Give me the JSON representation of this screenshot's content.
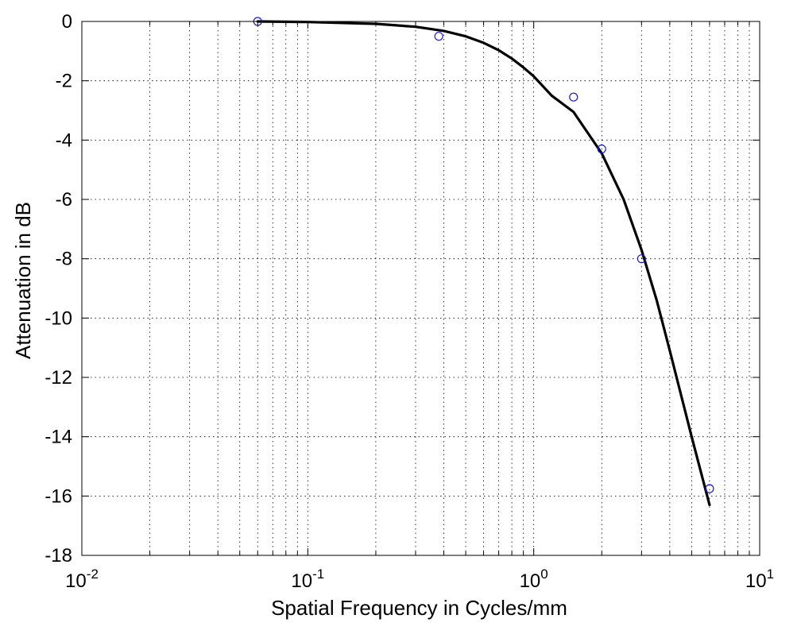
{
  "chart_data": {
    "type": "line",
    "title": "",
    "xlabel": "Spatial Frequency in Cycles/mm",
    "ylabel": "Attenuation in dB",
    "xscale": "log",
    "xlim": [
      0.01,
      10
    ],
    "ylim": [
      -18,
      0
    ],
    "x_ticks": [
      {
        "base": "10",
        "exp": "-2",
        "value": 0.01
      },
      {
        "base": "10",
        "exp": "-1",
        "value": 0.1
      },
      {
        "base": "10",
        "exp": "0",
        "value": 1
      },
      {
        "base": "10",
        "exp": "1",
        "value": 10
      }
    ],
    "y_ticks": [
      {
        "label": "0",
        "value": 0
      },
      {
        "label": "-2",
        "value": -2
      },
      {
        "label": "-4",
        "value": -4
      },
      {
        "label": "-6",
        "value": -6
      },
      {
        "label": "-8",
        "value": -8
      },
      {
        "label": "-10",
        "value": -10
      },
      {
        "label": "-12",
        "value": -12
      },
      {
        "label": "-14",
        "value": -14
      },
      {
        "label": "-16",
        "value": -16
      },
      {
        "label": "-18",
        "value": -18
      }
    ],
    "grid": true,
    "series": [
      {
        "kind": "line",
        "color": "#000000",
        "x": [
          0.06,
          0.1,
          0.2,
          0.3,
          0.4,
          0.5,
          0.6,
          0.7,
          0.8,
          0.9,
          1.0,
          1.2,
          1.5,
          2.0,
          2.5,
          3.0,
          3.5,
          4.0,
          5.0,
          6.0
        ],
        "y": [
          0,
          -0.02,
          -0.08,
          -0.18,
          -0.32,
          -0.5,
          -0.72,
          -0.97,
          -1.25,
          -1.55,
          -1.85,
          -2.5,
          -3.05,
          -4.45,
          -6.0,
          -7.7,
          -9.4,
          -11.1,
          -14.0,
          -16.3
        ]
      },
      {
        "kind": "markers",
        "marker": "circle-open",
        "color": "#1a1ad6",
        "x": [
          0.06,
          0.38,
          1.5,
          2.0,
          3.0,
          6.0
        ],
        "y": [
          0,
          -0.5,
          -2.55,
          -4.3,
          -8.0,
          -15.75
        ]
      }
    ]
  }
}
